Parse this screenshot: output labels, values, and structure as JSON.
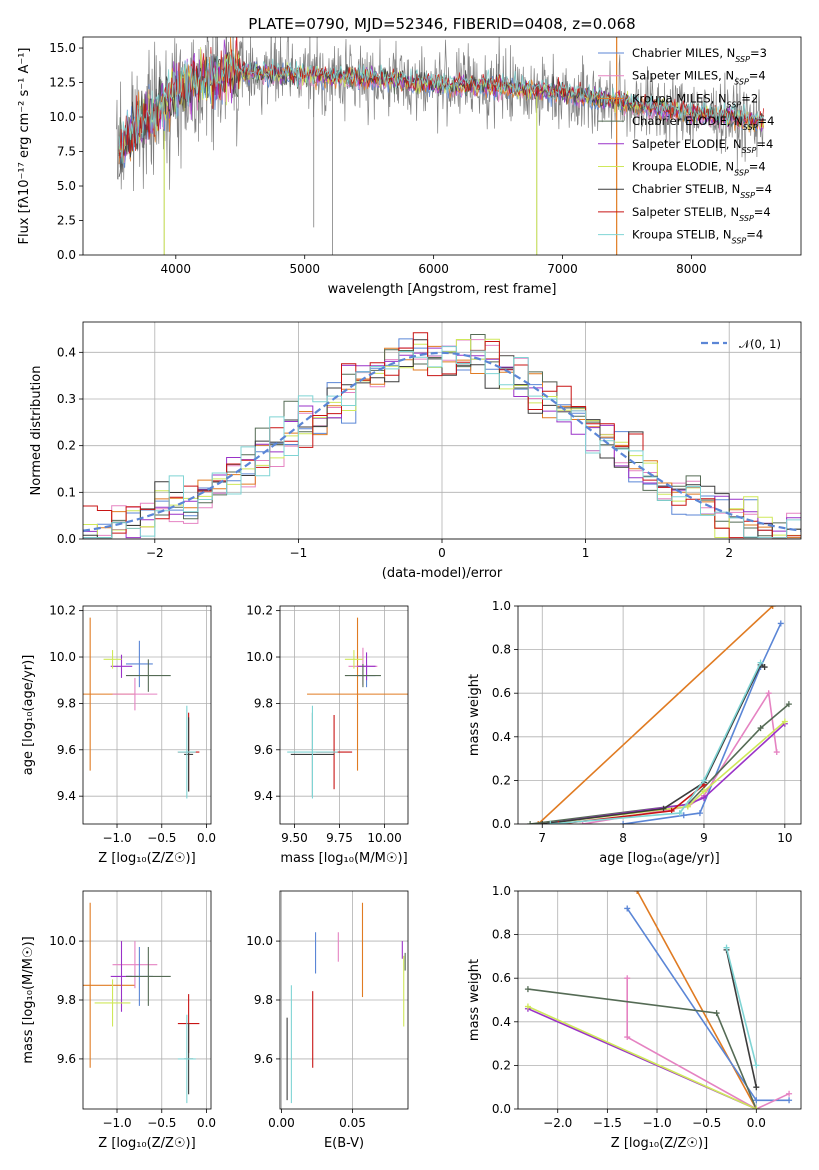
{
  "colors": {
    "blue": "#5b86d6",
    "pink": "#e583c2",
    "orange": "#e07b22",
    "darkgreen": "#556b55",
    "purple": "#9a32c8",
    "yellow": "#cfe85a",
    "dark": "#3c3c3c",
    "red": "#c81414",
    "cyan": "#7fd4d4",
    "gray": "#808080",
    "grid": "#b0b0b0"
  },
  "chart_data": [
    {
      "id": "spectrum",
      "type": "line",
      "title": "PLATE=0790, MJD=52346, FIBERID=0408, z=0.068",
      "xlabel": "wavelength [Angstrom, rest frame]",
      "ylabel": "Flux [fλ10⁻¹⁷ erg cm⁻² s⁻¹ A⁻¹]",
      "xlim": [
        3280,
        8850
      ],
      "ylim": [
        0,
        15.8
      ],
      "xticks": [
        4000,
        5000,
        6000,
        7000,
        8000
      ],
      "yticks": [
        0.0,
        2.5,
        5.0,
        7.5,
        10.0,
        12.5,
        15.0
      ],
      "grid": false,
      "legend_position": "right",
      "legend": [
        {
          "label": "Chabrier MILES, N",
          "sub": "SSP",
          "suffix": "=3",
          "color": "#5b86d6"
        },
        {
          "label": "Salpeter MILES, N",
          "sub": "SSP",
          "suffix": "=4",
          "color": "#e583c2"
        },
        {
          "label": "Kroupa MILES, N",
          "sub": "SSP",
          "suffix": "=2",
          "color": "#e07b22"
        },
        {
          "label": "Chabrier ELODIE, N",
          "sub": "SSP",
          "suffix": "=4",
          "color": "#556b55"
        },
        {
          "label": "Salpeter ELODIE, N",
          "sub": "SSP",
          "suffix": "=4",
          "color": "#9a32c8"
        },
        {
          "label": "Kroupa ELODIE, N",
          "sub": "SSP",
          "suffix": "=4",
          "color": "#cfe85a"
        },
        {
          "label": "Chabrier STELIB, N",
          "sub": "SSP",
          "suffix": "=4",
          "color": "#3c3c3c"
        },
        {
          "label": "Salpeter STELIB, N",
          "sub": "SSP",
          "suffix": "=4",
          "color": "#c81414"
        },
        {
          "label": "Kroupa STELIB, N",
          "sub": "SSP",
          "suffix": "=4",
          "color": "#7fd4d4"
        }
      ],
      "continuum": [
        [
          3550,
          7.5
        ],
        [
          3700,
          9.5
        ],
        [
          3850,
          10.5
        ],
        [
          4000,
          11.8
        ],
        [
          4200,
          12.8
        ],
        [
          4500,
          13.3
        ],
        [
          5000,
          13.0
        ],
        [
          5500,
          12.8
        ],
        [
          6000,
          12.4
        ],
        [
          6500,
          12.2
        ],
        [
          7000,
          11.8
        ],
        [
          7500,
          11.0
        ],
        [
          8000,
          10.3
        ],
        [
          8500,
          9.7
        ]
      ]
    },
    {
      "id": "residuals",
      "type": "line",
      "xlabel": "(data-model)/error",
      "ylabel": "Normed distribution",
      "xlim": [
        -2.5,
        2.5
      ],
      "ylim": [
        0,
        0.465
      ],
      "xticks": [
        -2,
        -1,
        0,
        1,
        2
      ],
      "yticks": [
        0.0,
        0.1,
        0.2,
        0.3,
        0.4
      ],
      "grid": true,
      "legend": [
        {
          "label": "𝒩(0, 1)",
          "color": "#5b86d6",
          "style": "dashed"
        }
      ],
      "series_note": "nine step histograms, one per model, closely following the normal curve"
    },
    {
      "id": "age-vs-Z",
      "type": "scatter",
      "xlabel": "Z [log₁₀(Z/Z☉)]",
      "ylabel": "age  [log₁₀(age/yr)]",
      "xlim": [
        -1.38,
        0.05
      ],
      "ylim": [
        9.28,
        10.22
      ],
      "xticks": [
        -1.0,
        -0.5,
        0.0
      ],
      "yticks": [
        9.4,
        9.6,
        9.8,
        10.0,
        10.2
      ],
      "grid": true,
      "points": [
        {
          "x": -1.3,
          "y": 9.84,
          "xerr": 0.5,
          "yerr": 0.33,
          "color": "#e07b22"
        },
        {
          "x": -0.8,
          "y": 9.84,
          "xerr": 0.25,
          "yerr": 0.07,
          "color": "#e583c2"
        },
        {
          "x": -0.75,
          "y": 9.97,
          "xerr": 0.15,
          "yerr": 0.1,
          "color": "#5b86d6"
        },
        {
          "x": -0.95,
          "y": 9.96,
          "xerr": 0.12,
          "yerr": 0.05,
          "color": "#9a32c8"
        },
        {
          "x": -1.05,
          "y": 9.99,
          "xerr": 0.1,
          "yerr": 0.04,
          "color": "#cfe85a"
        },
        {
          "x": -0.65,
          "y": 9.92,
          "xerr": 0.25,
          "yerr": 0.07,
          "color": "#556b55"
        },
        {
          "x": -0.2,
          "y": 9.59,
          "xerr": 0.12,
          "yerr": 0.17,
          "color": "#c81414"
        },
        {
          "x": -0.2,
          "y": 9.58,
          "xerr": 0.05,
          "yerr": 0.16,
          "color": "#3c3c3c"
        },
        {
          "x": -0.22,
          "y": 9.59,
          "xerr": 0.1,
          "yerr": 0.2,
          "color": "#7fd4d4"
        }
      ]
    },
    {
      "id": "age-vs-mass",
      "type": "scatter",
      "xlabel": "mass [log₁₀(M/M☉)]",
      "xlim": [
        9.42,
        10.13
      ],
      "ylim": [
        9.28,
        10.22
      ],
      "xticks": [
        9.5,
        9.75,
        10.0
      ],
      "yticks": [
        9.4,
        9.6,
        9.8,
        10.0,
        10.2
      ],
      "grid": true,
      "points": [
        {
          "x": 9.85,
          "y": 9.84,
          "xerr": 0.28,
          "yerr": 0.33,
          "color": "#e07b22"
        },
        {
          "x": 9.88,
          "y": 9.96,
          "xerr": 0.08,
          "yerr": 0.08,
          "color": "#e583c2"
        },
        {
          "x": 9.9,
          "y": 9.92,
          "xerr": 0.05,
          "yerr": 0.05,
          "color": "#5b86d6"
        },
        {
          "x": 9.9,
          "y": 9.96,
          "xerr": 0.05,
          "yerr": 0.06,
          "color": "#9a32c8"
        },
        {
          "x": 9.83,
          "y": 9.99,
          "xerr": 0.05,
          "yerr": 0.04,
          "color": "#cfe85a"
        },
        {
          "x": 9.88,
          "y": 9.92,
          "xerr": 0.1,
          "yerr": 0.05,
          "color": "#556b55"
        },
        {
          "x": 9.72,
          "y": 9.59,
          "xerr": 0.1,
          "yerr": 0.16,
          "color": "#c81414"
        },
        {
          "x": 9.6,
          "y": 9.58,
          "xerr": 0.12,
          "yerr": 0.18,
          "color": "#3c3c3c"
        },
        {
          "x": 9.6,
          "y": 9.59,
          "xerr": 0.14,
          "yerr": 0.2,
          "color": "#7fd4d4"
        }
      ]
    },
    {
      "id": "weight-vs-age",
      "type": "line",
      "xlabel": "age  [log₁₀(age/yr)]",
      "ylabel": "mass weight",
      "xlim": [
        6.7,
        10.2
      ],
      "ylim": [
        0,
        1.0
      ],
      "xticks": [
        7,
        8,
        9,
        10
      ],
      "yticks": [
        0.0,
        0.2,
        0.4,
        0.6,
        0.8,
        1.0
      ],
      "grid": true,
      "series": [
        {
          "color": "#e07b22",
          "points": [
            [
              6.95,
              0.0
            ],
            [
              9.85,
              1.0
            ]
          ]
        },
        {
          "color": "#5b86d6",
          "points": [
            [
              8.0,
              0.0
            ],
            [
              8.75,
              0.04
            ],
            [
              8.95,
              0.05
            ],
            [
              9.7,
              0.72
            ],
            [
              9.95,
              0.92
            ]
          ]
        },
        {
          "color": "#e583c2",
          "points": [
            [
              7.5,
              0.0
            ],
            [
              8.8,
              0.08
            ],
            [
              9.0,
              0.13
            ],
            [
              9.8,
              0.6
            ],
            [
              9.9,
              0.33
            ]
          ]
        },
        {
          "color": "#556b55",
          "points": [
            [
              6.85,
              0.0
            ],
            [
              8.8,
              0.09
            ],
            [
              9.7,
              0.44
            ],
            [
              10.05,
              0.55
            ]
          ]
        },
        {
          "color": "#9a32c8",
          "points": [
            [
              7.0,
              0.0
            ],
            [
              8.8,
              0.09
            ],
            [
              9.0,
              0.12
            ],
            [
              10.0,
              0.46
            ]
          ]
        },
        {
          "color": "#cfe85a",
          "points": [
            [
              7.0,
              0.0
            ],
            [
              8.8,
              0.08
            ],
            [
              9.0,
              0.15
            ],
            [
              10.0,
              0.47
            ]
          ]
        },
        {
          "color": "#3c3c3c",
          "points": [
            [
              7.0,
              0.0
            ],
            [
              8.5,
              0.07
            ],
            [
              9.0,
              0.19
            ],
            [
              9.7,
              0.73
            ],
            [
              9.75,
              0.72
            ]
          ]
        },
        {
          "color": "#c81414",
          "points": [
            [
              7.2,
              0.0
            ],
            [
              8.6,
              0.06
            ],
            [
              9.0,
              0.18
            ]
          ]
        },
        {
          "color": "#7fd4d4",
          "points": [
            [
              7.1,
              0.0
            ],
            [
              8.7,
              0.05
            ],
            [
              9.0,
              0.2
            ],
            [
              9.7,
              0.74
            ]
          ]
        }
      ]
    },
    {
      "id": "mass-vs-Z",
      "type": "scatter",
      "xlabel": "Z [log₁₀(Z/Z☉)]",
      "ylabel": "mass [log₁₀(M/M☉)]",
      "xlim": [
        -1.38,
        0.05
      ],
      "ylim": [
        9.43,
        10.17
      ],
      "xticks": [
        -1.0,
        -0.5,
        0.0
      ],
      "yticks": [
        9.6,
        9.8,
        10.0
      ],
      "grid": true,
      "points": [
        {
          "x": -1.3,
          "y": 9.85,
          "xerr": 0.5,
          "yerr": 0.28,
          "color": "#e07b22"
        },
        {
          "x": -0.8,
          "y": 9.92,
          "xerr": 0.25,
          "yerr": 0.08,
          "color": "#e583c2"
        },
        {
          "x": -0.75,
          "y": 9.88,
          "xerr": 0.15,
          "yerr": 0.1,
          "color": "#5b86d6"
        },
        {
          "x": -0.95,
          "y": 9.88,
          "xerr": 0.12,
          "yerr": 0.12,
          "color": "#9a32c8"
        },
        {
          "x": -1.05,
          "y": 9.79,
          "xerr": 0.2,
          "yerr": 0.08,
          "color": "#cfe85a"
        },
        {
          "x": -0.65,
          "y": 9.88,
          "xerr": 0.25,
          "yerr": 0.1,
          "color": "#556b55"
        },
        {
          "x": -0.2,
          "y": 9.72,
          "xerr": 0.12,
          "yerr": 0.1,
          "color": "#c81414"
        },
        {
          "x": -0.2,
          "y": 9.6,
          "xerr": 0.05,
          "yerr": 0.12,
          "color": "#3c3c3c"
        },
        {
          "x": -0.22,
          "y": 9.6,
          "xerr": 0.1,
          "yerr": 0.15,
          "color": "#7fd4d4"
        }
      ]
    },
    {
      "id": "mass-vs-ebv",
      "type": "scatter",
      "xlabel": "E(B-V)",
      "xlim": [
        -0.001,
        0.089
      ],
      "ylim": [
        9.43,
        10.17
      ],
      "xticks": [
        0.0,
        0.05
      ],
      "yticks": [
        9.6,
        9.8,
        10.0
      ],
      "grid": true,
      "points": [
        {
          "x": 0.057,
          "y": 9.97,
          "yerr": 0.16,
          "color": "#e07b22"
        },
        {
          "x": 0.04,
          "y": 9.98,
          "yerr": 0.05,
          "color": "#e583c2"
        },
        {
          "x": 0.024,
          "y": 9.96,
          "yerr": 0.07,
          "color": "#5b86d6"
        },
        {
          "x": 0.085,
          "y": 9.97,
          "yerr": 0.03,
          "color": "#9a32c8"
        },
        {
          "x": 0.086,
          "y": 9.83,
          "yerr": 0.12,
          "color": "#cfe85a"
        },
        {
          "x": 0.087,
          "y": 9.93,
          "yerr": 0.03,
          "color": "#556b55"
        },
        {
          "x": 0.022,
          "y": 9.7,
          "yerr": 0.13,
          "color": "#c81414"
        },
        {
          "x": 0.004,
          "y": 9.6,
          "yerr": 0.14,
          "color": "#3c3c3c"
        },
        {
          "x": 0.007,
          "y": 9.65,
          "yerr": 0.2,
          "color": "#7fd4d4"
        }
      ]
    },
    {
      "id": "weight-vs-Z",
      "type": "line",
      "xlabel": "Z [log₁₀(Z/Z☉)]",
      "ylabel": "mass weight",
      "xlim": [
        -2.4,
        0.45
      ],
      "ylim": [
        0,
        1.0
      ],
      "xticks": [
        -2.0,
        -1.5,
        -1.0,
        -0.5,
        0.0
      ],
      "yticks": [
        0.0,
        0.2,
        0.4,
        0.6,
        0.8,
        1.0
      ],
      "grid": true,
      "series": [
        {
          "color": "#e07b22",
          "points": [
            [
              -1.2,
              1.0
            ],
            [
              0.0,
              0.0
            ]
          ]
        },
        {
          "color": "#5b86d6",
          "points": [
            [
              -1.3,
              0.92
            ],
            [
              0.0,
              0.04
            ],
            [
              0.33,
              0.04
            ]
          ]
        },
        {
          "color": "#e583c2",
          "points": [
            [
              -1.3,
              0.6
            ],
            [
              -1.3,
              0.33
            ],
            [
              0.0,
              0.0
            ],
            [
              0.33,
              0.07
            ]
          ]
        },
        {
          "color": "#556b55",
          "points": [
            [
              -2.3,
              0.55
            ],
            [
              -0.4,
              0.44
            ],
            [
              0.0,
              0.0
            ]
          ]
        },
        {
          "color": "#9a32c8",
          "points": [
            [
              -2.3,
              0.46
            ],
            [
              0.0,
              0.0
            ]
          ]
        },
        {
          "color": "#cfe85a",
          "points": [
            [
              -2.3,
              0.47
            ],
            [
              0.0,
              0.0
            ]
          ]
        },
        {
          "color": "#3c3c3c",
          "points": [
            [
              -0.3,
              0.73
            ],
            [
              0.0,
              0.1
            ]
          ]
        },
        {
          "color": "#7fd4d4",
          "points": [
            [
              -0.3,
              0.74
            ],
            [
              0.0,
              0.2
            ]
          ]
        }
      ]
    }
  ]
}
